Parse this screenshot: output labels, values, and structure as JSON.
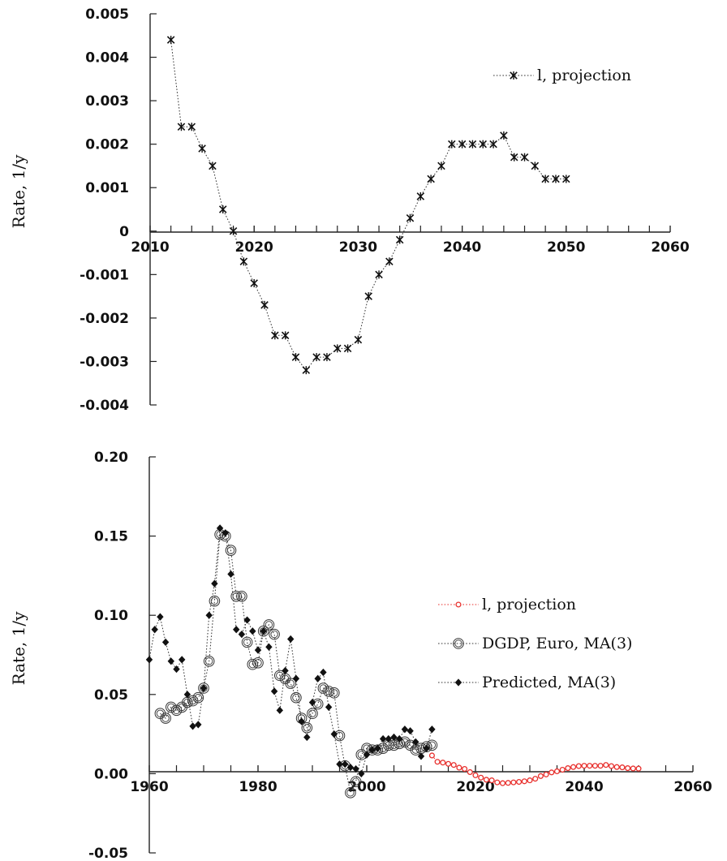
{
  "colors": {
    "projection_red": "#e8302d",
    "black": "#111111"
  },
  "chart_data": [
    {
      "type": "line",
      "xlim": [
        2010,
        2060
      ],
      "ylim": [
        -0.004,
        0.005
      ],
      "ylabel": "Rate, 1/y",
      "xticks": [
        "2010",
        "2020",
        "2030",
        "2040",
        "2050",
        "2060"
      ],
      "yticks": [
        "0.005",
        "0.004",
        "0.003",
        "0.002",
        "0.001",
        "0",
        "-0.001",
        "-0.002",
        "-0.003",
        "-0.004"
      ],
      "ytick_values": [
        0.005,
        0.004,
        0.003,
        0.002,
        0.001,
        0,
        -0.001,
        -0.002,
        -0.003,
        -0.004
      ],
      "xtick_values": [
        2010,
        2020,
        2030,
        2040,
        2050,
        2060
      ],
      "legend_position": "top-right",
      "series": [
        {
          "name": "l, projection",
          "marker": "asterisk",
          "x": [
            2012,
            2013,
            2014,
            2015,
            2016,
            2017,
            2018,
            2019,
            2020,
            2021,
            2022,
            2023,
            2024,
            2025,
            2026,
            2027,
            2028,
            2029,
            2030,
            2031,
            2032,
            2033,
            2034,
            2035,
            2036,
            2037,
            2038,
            2039,
            2040,
            2041,
            2042,
            2043,
            2044,
            2045,
            2046,
            2047,
            2048,
            2049,
            2050
          ],
          "y": [
            0.0044,
            0.0024,
            0.0024,
            0.0019,
            0.0015,
            0.0005,
            0.0,
            -0.0007,
            -0.0012,
            -0.0017,
            -0.0024,
            -0.0024,
            -0.0029,
            -0.0032,
            -0.0029,
            -0.0029,
            -0.0027,
            -0.0027,
            -0.0025,
            -0.0015,
            -0.001,
            -0.0007,
            -0.0002,
            0.0003,
            0.0008,
            0.0012,
            0.0015,
            0.002,
            0.002,
            0.002,
            0.002,
            0.002,
            0.0022,
            0.0017,
            0.0017,
            0.0015,
            0.0012,
            0.0012,
            0.0012
          ]
        }
      ]
    },
    {
      "type": "line",
      "xlim": [
        1960,
        2060
      ],
      "ylim": [
        -0.05,
        0.2
      ],
      "ylabel": "Rate, 1/y",
      "xticks": [
        "1960",
        "1980",
        "2000",
        "2020",
        "2040",
        "2060"
      ],
      "yticks": [
        "0.20",
        "0.15",
        "0.10",
        "0.05",
        "0.00",
        "-0.05"
      ],
      "ytick_values": [
        0.2,
        0.15,
        0.1,
        0.05,
        0.0,
        -0.05
      ],
      "xtick_values": [
        1960,
        1980,
        2000,
        2020,
        2040,
        2060
      ],
      "legend_position": "right",
      "series": [
        {
          "name": "l, projection",
          "marker": "small-circle-red",
          "x": [
            2012,
            2013,
            2014,
            2015,
            2016,
            2017,
            2018,
            2019,
            2020,
            2021,
            2022,
            2023,
            2024,
            2025,
            2026,
            2027,
            2028,
            2029,
            2030,
            2031,
            2032,
            2033,
            2034,
            2035,
            2036,
            2037,
            2038,
            2039,
            2040,
            2041,
            2042,
            2043,
            2044,
            2045,
            2046,
            2047,
            2048,
            2049,
            2050
          ],
          "y": [
            0.0115,
            0.0075,
            0.007,
            0.0062,
            0.0055,
            0.0038,
            0.003,
            0.001,
            -0.001,
            -0.0025,
            -0.0038,
            -0.0042,
            -0.0055,
            -0.006,
            -0.0058,
            -0.0055,
            -0.0052,
            -0.0048,
            -0.0042,
            -0.0032,
            -0.0015,
            -0.0005,
            0.0008,
            0.0015,
            0.0025,
            0.0035,
            0.0042,
            0.0048,
            0.005,
            0.005,
            0.005,
            0.005,
            0.0055,
            0.0048,
            0.0042,
            0.004,
            0.0035,
            0.0033,
            0.0032
          ]
        },
        {
          "name": "DGDP, Euro, MA(3)",
          "marker": "open-circle",
          "x": [
            1962,
            1963,
            1964,
            1965,
            1966,
            1967,
            1968,
            1969,
            1970,
            1971,
            1972,
            1973,
            1974,
            1975,
            1976,
            1977,
            1978,
            1979,
            1980,
            1981,
            1982,
            1983,
            1984,
            1985,
            1986,
            1987,
            1988,
            1989,
            1990,
            1991,
            1992,
            1993,
            1994,
            1995,
            1996,
            1997,
            1998,
            1999,
            2000,
            2001,
            2002,
            2003,
            2004,
            2005,
            2006,
            2007,
            2008,
            2009,
            2010,
            2011,
            2012
          ],
          "y": [
            0.038,
            0.035,
            0.042,
            0.04,
            0.042,
            0.045,
            0.046,
            0.048,
            0.054,
            0.071,
            0.109,
            0.151,
            0.15,
            0.141,
            0.112,
            0.112,
            0.083,
            0.069,
            0.07,
            0.09,
            0.094,
            0.088,
            0.062,
            0.06,
            0.057,
            0.048,
            0.035,
            0.029,
            0.038,
            0.044,
            0.054,
            0.052,
            0.051,
            0.024,
            0.005,
            -0.012,
            -0.005,
            0.012,
            0.016,
            0.015,
            0.015,
            0.016,
            0.018,
            0.018,
            0.019,
            0.02,
            0.018,
            0.015,
            0.016,
            0.017,
            0.018
          ]
        },
        {
          "name": "Predicted, MA(3)",
          "marker": "filled-diamond",
          "x": [
            1960,
            1961,
            1962,
            1963,
            1964,
            1965,
            1966,
            1967,
            1968,
            1969,
            1970,
            1971,
            1972,
            1973,
            1974,
            1975,
            1976,
            1977,
            1978,
            1979,
            1980,
            1981,
            1982,
            1983,
            1984,
            1985,
            1986,
            1987,
            1988,
            1989,
            1990,
            1991,
            1992,
            1993,
            1994,
            1995,
            1996,
            1997,
            1998,
            1999,
            2000,
            2001,
            2002,
            2003,
            2004,
            2005,
            2006,
            2007,
            2008,
            2009,
            2010,
            2011,
            2012
          ],
          "y": [
            0.072,
            0.091,
            0.099,
            0.083,
            0.071,
            0.066,
            0.072,
            0.05,
            0.03,
            0.031,
            0.054,
            0.1,
            0.12,
            0.155,
            0.152,
            0.126,
            0.091,
            0.088,
            0.097,
            0.09,
            0.078,
            0.09,
            0.08,
            0.052,
            0.04,
            0.065,
            0.085,
            0.06,
            0.033,
            0.023,
            0.045,
            0.06,
            0.064,
            0.042,
            0.025,
            0.006,
            0.006,
            0.004,
            0.003,
            0.0,
            0.012,
            0.015,
            0.016,
            0.022,
            0.022,
            0.023,
            0.022,
            0.028,
            0.027,
            0.02,
            0.011,
            0.016,
            0.028
          ]
        }
      ]
    }
  ]
}
